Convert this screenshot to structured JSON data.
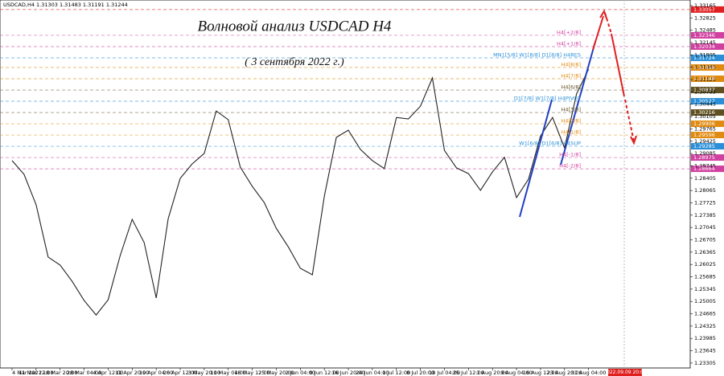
{
  "chart_data": {
    "type": "line",
    "header": "USDCAD,H4  1.31303 1.31483 1.31191 1.31244",
    "title": "Волновой анализ USDCAD H4",
    "subtitle": "( 3 сентября 2022 г.)",
    "categories": [
      "4 Mar 2022",
      null,
      "11 Mar 12:00",
      null,
      "18 Mar 20:00",
      null,
      "28 Mar 04:00",
      null,
      "4 Apr 12:00",
      null,
      "11 Apr 20:00",
      null,
      "19 Apr 04:00",
      null,
      "26 Apr 12:00",
      null,
      "3 May 20:00",
      null,
      "11 May 04:00",
      null,
      "18 May 12:00",
      null,
      "25 May 20:00",
      null,
      "2 Jun 04:00",
      null,
      "9 Jun 12:00",
      null,
      "16 Jun 20:00",
      null,
      "24 Jun 04:00",
      null,
      "1 Jul 12:00",
      null,
      "8 Jul 20:00",
      null,
      "18 Jul 04:00",
      null,
      "25 Jul 12:00",
      null,
      "1 Aug 20:00",
      null,
      "9 Aug 04:00",
      null,
      "16 Aug 12:00",
      null,
      "23 Aug 20:00",
      null,
      "31 Aug 04:00"
    ],
    "values": [
      1.2889,
      1.2851,
      1.2767,
      1.2623,
      1.2601,
      1.2556,
      1.2503,
      1.2463,
      1.2505,
      1.2627,
      1.2727,
      1.2663,
      1.251,
      1.2729,
      1.284,
      1.288,
      1.2909,
      1.3026,
      1.3002,
      1.2871,
      1.2818,
      1.2773,
      1.2702,
      1.2651,
      1.2592,
      1.2574,
      1.2791,
      1.2953,
      1.2973,
      1.292,
      1.2889,
      1.2867,
      1.3008,
      1.3004,
      1.3039,
      1.3117,
      1.2917,
      1.2869,
      1.2853,
      1.2807,
      1.2858,
      1.2898,
      1.2787,
      1.2838,
      1.2957,
      1.3008,
      1.2924,
      1.3073,
      1.3141
    ],
    "color": "#222222",
    "ylim": [
      1.2317,
      1.3332
    ],
    "yticks": [
      1.33165,
      1.32825,
      1.32485,
      1.32145,
      1.31805,
      1.31465,
      1.31125,
      1.30785,
      1.30445,
      1.30105,
      1.29765,
      1.29425,
      1.29085,
      1.28745,
      1.28405,
      1.28065,
      1.27725,
      1.27385,
      1.27045,
      1.26705,
      1.26365,
      1.26025,
      1.25685,
      1.25345,
      1.25005,
      1.24665,
      1.24325,
      1.23985,
      1.23645,
      1.23305
    ],
    "levels": [
      {
        "value": 1.33057,
        "color": "#e02020"
      },
      {
        "label": "H4[+2/8]",
        "value": 1.32346,
        "color": "#d040a0"
      },
      {
        "label": "H4[+1/8]",
        "value": 1.32034,
        "color": "#d040a0"
      },
      {
        "label": "MN1[5/8] W1[8/8] D1[8/8] H4RES",
        "value": 1.31724,
        "color": "#2a8fd8"
      },
      {
        "label": "H4[8/8]",
        "value": 1.31458,
        "color": "#e08a10"
      },
      {
        "label": "H4[7/8]",
        "value": 1.31148,
        "color": "#e08a10"
      },
      {
        "label": "H4[6/8]",
        "value": 1.30837,
        "color": "#605020"
      },
      {
        "label": "D1[7/8] W1[7/8] H4PIVOT",
        "value": 1.30527,
        "color": "#2a8fd8"
      },
      {
        "label": "H4[3/8]",
        "value": 1.30216,
        "color": "#605020"
      },
      {
        "label": "H4[2/8]",
        "value": 1.29906,
        "color": "#e08a10"
      },
      {
        "label": "H4[1/8]",
        "value": 1.29596,
        "color": "#e08a10"
      },
      {
        "label": "W1[6/8] D1[6/8] H4SUP",
        "value": 1.29285,
        "color": "#2a8fd8"
      },
      {
        "label": "H4[-1/8]",
        "value": 1.28975,
        "color": "#d040a0"
      },
      {
        "label": "H4[-2/8]",
        "value": 1.28664,
        "color": "#d040a0"
      }
    ],
    "time_marker": "2022.09.09 20:00"
  }
}
